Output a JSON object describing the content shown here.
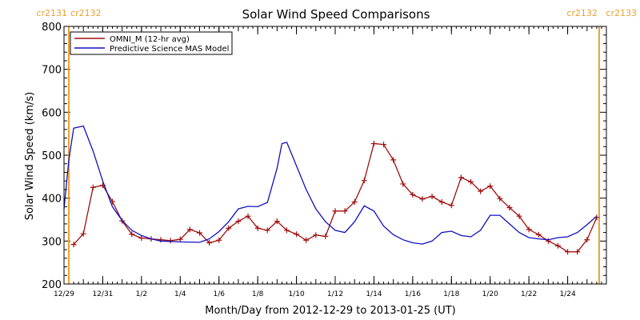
{
  "chart_data": {
    "type": "line",
    "title": "Solar Wind Speed Comparisons",
    "xlabel": "Month/Day from 2012-12-29 to 2013-01-25 (UT)",
    "ylabel": "Solar Wind Speed (km/s)",
    "xlim": [
      "2012-12-29",
      "2013-01-25"
    ],
    "ylim": [
      200,
      800
    ],
    "yticks": [
      200,
      300,
      400,
      500,
      600,
      700,
      800
    ],
    "xtick_labels": [
      {
        "date": "2012-12-29",
        "label": "12/29"
      },
      {
        "date": "2012-12-31",
        "label": "12/31"
      },
      {
        "date": "2013-01-02",
        "label": "1/2"
      },
      {
        "date": "2013-01-04",
        "label": "1/4"
      },
      {
        "date": "2013-01-06",
        "label": "1/6"
      },
      {
        "date": "2013-01-08",
        "label": "1/8"
      },
      {
        "date": "2013-01-10",
        "label": "1/10"
      },
      {
        "date": "2013-01-12",
        "label": "1/12"
      },
      {
        "date": "2013-01-14",
        "label": "1/14"
      },
      {
        "date": "2013-01-16",
        "label": "1/16"
      },
      {
        "date": "2013-01-18",
        "label": "1/18"
      },
      {
        "date": "2013-01-20",
        "label": "1/20"
      },
      {
        "date": "2013-01-22",
        "label": "1/22"
      },
      {
        "date": "2013-01-24",
        "label": "1/24"
      }
    ],
    "legend_placement": "top-left",
    "carrington_markers": [
      {
        "date": "2012-12-29 06:00",
        "label_left": "cr2131",
        "label_right": "cr2132",
        "color": "#e8a030"
      },
      {
        "date": "2013-01-25 15:00",
        "label_left": "cr2132",
        "label_right": "cr2133",
        "color": "#e8a030"
      }
    ],
    "series": [
      {
        "name": "OMNI_M (12-hr avg)",
        "color": "#a01010",
        "marker": "plus",
        "points": [
          [
            "2012-12-29 12:00",
            292
          ],
          [
            "2012-12-30 00:00",
            317
          ],
          [
            "2012-12-30 12:00",
            425
          ],
          [
            "2012-12-31 00:00",
            430
          ],
          [
            "2012-12-31 12:00",
            392
          ],
          [
            "2013-01-01 00:00",
            347
          ],
          [
            "2013-01-01 12:00",
            316
          ],
          [
            "2013-01-02 00:00",
            307
          ],
          [
            "2013-01-02 12:00",
            305
          ],
          [
            "2013-01-03 00:00",
            303
          ],
          [
            "2013-01-03 12:00",
            301
          ],
          [
            "2013-01-04 00:00",
            304
          ],
          [
            "2013-01-04 12:00",
            327
          ],
          [
            "2013-01-05 00:00",
            319
          ],
          [
            "2013-01-05 12:00",
            296
          ],
          [
            "2013-01-06 00:00",
            302
          ],
          [
            "2013-01-06 12:00",
            330
          ],
          [
            "2013-01-07 00:00",
            346
          ],
          [
            "2013-01-07 12:00",
            358
          ],
          [
            "2013-01-08 00:00",
            330
          ],
          [
            "2013-01-08 12:00",
            325
          ],
          [
            "2013-01-09 00:00",
            346
          ],
          [
            "2013-01-09 12:00",
            325
          ],
          [
            "2013-01-10 00:00",
            316
          ],
          [
            "2013-01-10 12:00",
            302
          ],
          [
            "2013-01-11 00:00",
            314
          ],
          [
            "2013-01-11 12:00",
            311
          ],
          [
            "2013-01-12 00:00",
            370
          ],
          [
            "2013-01-12 12:00",
            370
          ],
          [
            "2013-01-13 00:00",
            391
          ],
          [
            "2013-01-13 12:00",
            441
          ],
          [
            "2013-01-14 00:00",
            527
          ],
          [
            "2013-01-14 12:00",
            525
          ],
          [
            "2013-01-15 00:00",
            489
          ],
          [
            "2013-01-15 12:00",
            433
          ],
          [
            "2013-01-16 00:00",
            408
          ],
          [
            "2013-01-16 12:00",
            398
          ],
          [
            "2013-01-17 00:00",
            404
          ],
          [
            "2013-01-17 12:00",
            391
          ],
          [
            "2013-01-18 00:00",
            383
          ],
          [
            "2013-01-18 12:00",
            448
          ],
          [
            "2013-01-19 00:00",
            438
          ],
          [
            "2013-01-19 12:00",
            416
          ],
          [
            "2013-01-20 00:00",
            428
          ],
          [
            "2013-01-20 12:00",
            399
          ],
          [
            "2013-01-21 00:00",
            378
          ],
          [
            "2013-01-21 12:00",
            358
          ],
          [
            "2013-01-22 00:00",
            327
          ],
          [
            "2013-01-22 12:00",
            315
          ],
          [
            "2013-01-23 00:00",
            300
          ],
          [
            "2013-01-23 12:00",
            289
          ],
          [
            "2013-01-24 00:00",
            275
          ],
          [
            "2013-01-24 12:00",
            275
          ],
          [
            "2013-01-25 00:00",
            303
          ],
          [
            "2013-01-25 12:00",
            355
          ]
        ]
      },
      {
        "name": "Predictive Science MAS Model",
        "color": "#1010c0",
        "marker": "none",
        "points": [
          [
            "2012-12-29 00:00",
            375
          ],
          [
            "2012-12-29 06:00",
            490
          ],
          [
            "2012-12-29 12:00",
            563
          ],
          [
            "2012-12-30 00:00",
            568
          ],
          [
            "2012-12-30 12:00",
            510
          ],
          [
            "2012-12-31 00:00",
            440
          ],
          [
            "2012-12-31 12:00",
            380
          ],
          [
            "2013-01-01 00:00",
            348
          ],
          [
            "2013-01-01 12:00",
            325
          ],
          [
            "2013-01-02 00:00",
            313
          ],
          [
            "2013-01-02 12:00",
            305
          ],
          [
            "2013-01-03 00:00",
            300
          ],
          [
            "2013-01-04 00:00",
            298
          ],
          [
            "2013-01-05 00:00",
            297
          ],
          [
            "2013-01-05 12:00",
            305
          ],
          [
            "2013-01-06 00:00",
            322
          ],
          [
            "2013-01-06 12:00",
            345
          ],
          [
            "2013-01-07 00:00",
            375
          ],
          [
            "2013-01-07 12:00",
            381
          ],
          [
            "2013-01-08 00:00",
            380
          ],
          [
            "2013-01-08 12:00",
            390
          ],
          [
            "2013-01-09 00:00",
            470
          ],
          [
            "2013-01-09 06:00",
            527
          ],
          [
            "2013-01-09 12:00",
            530
          ],
          [
            "2013-01-10 00:00",
            475
          ],
          [
            "2013-01-10 12:00",
            420
          ],
          [
            "2013-01-11 00:00",
            375
          ],
          [
            "2013-01-11 12:00",
            345
          ],
          [
            "2013-01-12 00:00",
            325
          ],
          [
            "2013-01-12 12:00",
            320
          ],
          [
            "2013-01-13 00:00",
            345
          ],
          [
            "2013-01-13 12:00",
            382
          ],
          [
            "2013-01-14 00:00",
            370
          ],
          [
            "2013-01-14 12:00",
            335
          ],
          [
            "2013-01-15 00:00",
            315
          ],
          [
            "2013-01-15 12:00",
            303
          ],
          [
            "2013-01-16 00:00",
            296
          ],
          [
            "2013-01-16 12:00",
            293
          ],
          [
            "2013-01-17 00:00",
            300
          ],
          [
            "2013-01-17 12:00",
            320
          ],
          [
            "2013-01-18 00:00",
            323
          ],
          [
            "2013-01-18 12:00",
            313
          ],
          [
            "2013-01-19 00:00",
            310
          ],
          [
            "2013-01-19 12:00",
            325
          ],
          [
            "2013-01-20 00:00",
            360
          ],
          [
            "2013-01-20 12:00",
            360
          ],
          [
            "2013-01-21 00:00",
            340
          ],
          [
            "2013-01-21 12:00",
            320
          ],
          [
            "2013-01-22 00:00",
            308
          ],
          [
            "2013-01-22 12:00",
            305
          ],
          [
            "2013-01-23 00:00",
            303
          ],
          [
            "2013-01-23 12:00",
            308
          ],
          [
            "2013-01-24 00:00",
            310
          ],
          [
            "2013-01-24 12:00",
            320
          ],
          [
            "2013-01-25 00:00",
            338
          ],
          [
            "2013-01-25 12:00",
            358
          ]
        ]
      }
    ]
  }
}
